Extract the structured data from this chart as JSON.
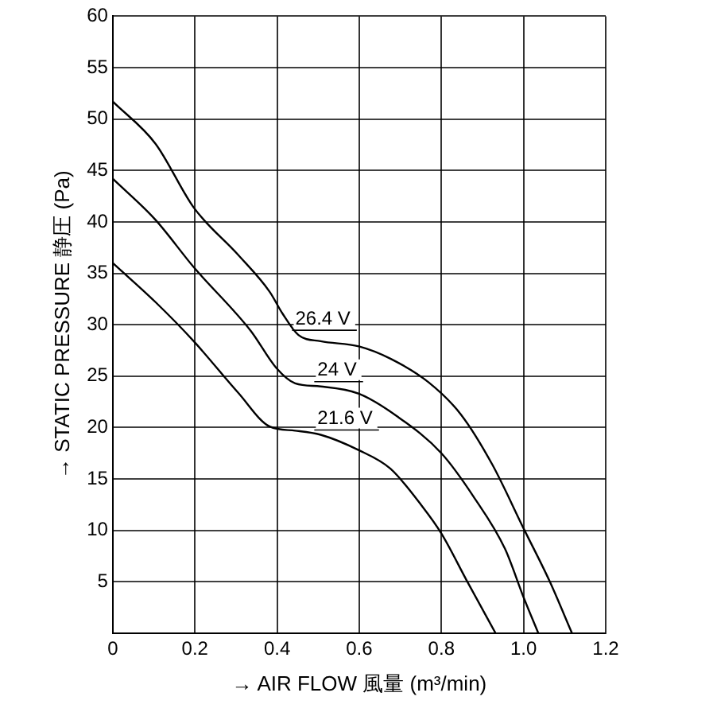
{
  "chart_data": {
    "type": "line",
    "xlabel": "→ AIR FLOW 風量 (m³/min)",
    "ylabel": "→ STATIC PRESSURE 静圧 (Pa)",
    "xlim": [
      0,
      1.2
    ],
    "xticks": [
      0,
      0.2,
      0.4,
      0.6,
      0.8,
      {
        "value": 1.0,
        "label": "1.0"
      },
      1.2
    ],
    "ylim": [
      0,
      60
    ],
    "yticks": [
      {
        "value": 0,
        "label": null
      },
      5,
      10,
      15,
      20,
      25,
      30,
      35,
      40,
      45,
      50,
      55,
      60
    ],
    "grid": true,
    "legend": false,
    "marker": "none",
    "line_style": "solid",
    "series": [
      {
        "name": "26.4 V",
        "color": "#000000",
        "x": [
          0,
          0.104,
          0.197,
          0.305,
          0.382,
          0.413,
          0.452,
          0.506,
          0.599,
          0.676,
          0.769,
          0.847,
          0.924,
          1.0,
          1.063,
          1.118
        ],
        "values": [
          51.7,
          47.6,
          41.4,
          36.8,
          33.2,
          31.1,
          29.0,
          28.4,
          27.9,
          26.7,
          24.4,
          21.3,
          16.4,
          10.2,
          5.1,
          0
        ]
      },
      {
        "name": "24 V",
        "color": "#000000",
        "x": [
          0,
          0.104,
          0.197,
          0.336,
          0.398,
          0.444,
          0.506,
          0.599,
          0.692,
          0.8,
          0.878,
          0.955,
          1.0,
          1.036
        ],
        "values": [
          44.2,
          40.2,
          35.6,
          29.4,
          25.8,
          24.3,
          24.0,
          23.3,
          21.1,
          17.5,
          13.3,
          8.2,
          3.5,
          0
        ]
      },
      {
        "name": "21.6 V",
        "color": "#000000",
        "x": [
          0,
          0.104,
          0.197,
          0.305,
          0.382,
          0.444,
          0.506,
          0.599,
          0.676,
          0.754,
          0.8,
          0.862,
          0.932
        ],
        "values": [
          36.0,
          32.2,
          28.4,
          23.4,
          20.1,
          19.7,
          19.3,
          17.8,
          16.0,
          12.3,
          9.7,
          5.1,
          0
        ]
      }
    ]
  }
}
